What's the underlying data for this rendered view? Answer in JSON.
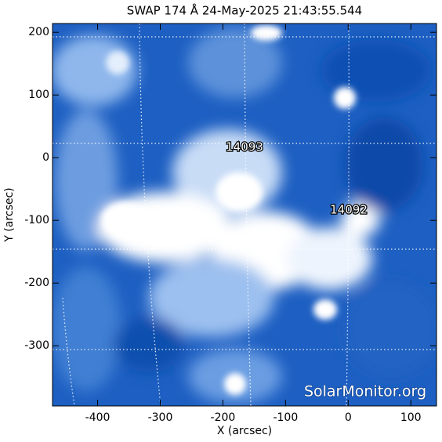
{
  "chart_data": {
    "type": "image",
    "title": "SWAP 174 Å 24-May-2025 21:43:55.544",
    "xlabel": "X (arcsec)",
    "ylabel": "Y (arcsec)",
    "xlim": [
      -472,
      141
    ],
    "ylim": [
      -396,
      214
    ],
    "xticks": [
      -400,
      -300,
      -200,
      -100,
      0,
      100
    ],
    "yticks": [
      -300,
      -200,
      -100,
      0,
      100,
      200
    ]
  },
  "annotations": [
    "14093",
    "14092"
  ],
  "watermark": "SolarMonitor.org"
}
